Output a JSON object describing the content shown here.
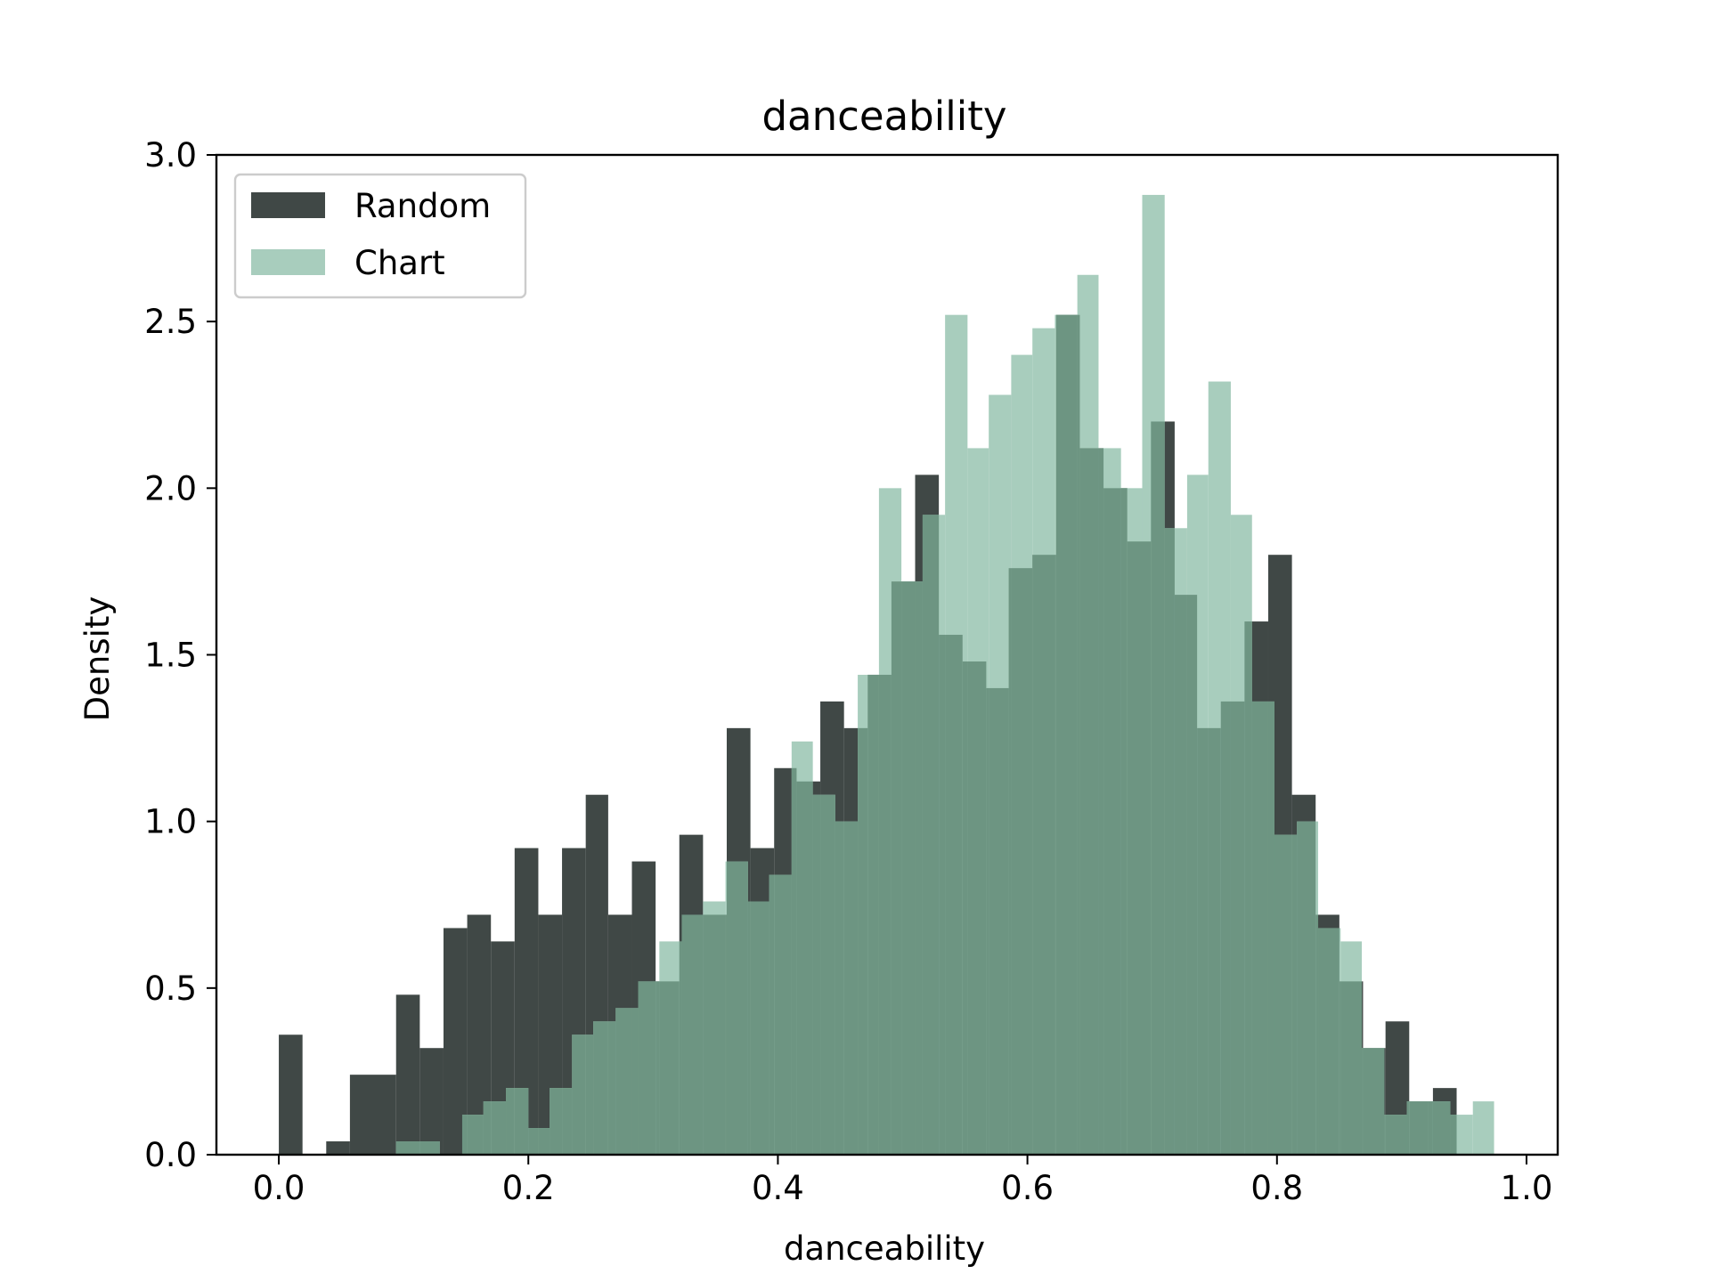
{
  "chart_data": {
    "type": "bar",
    "title": "danceability",
    "xlabel": "danceability",
    "ylabel": "Density",
    "xlim": [
      -0.05,
      1.025
    ],
    "ylim": [
      0,
      3.0
    ],
    "xticks": [
      "0.0",
      "0.2",
      "0.4",
      "0.6",
      "0.8",
      "1.0"
    ],
    "yticks": [
      "0.0",
      "0.5",
      "1.0",
      "1.5",
      "2.0",
      "2.5",
      "3.0"
    ],
    "legend_position": "upper-left",
    "colors": {
      "Random": "#404846",
      "Chart": "#a8cdbd",
      "overlap": "#6d9582"
    },
    "series": [
      {
        "name": "Random",
        "bins": [
          [
            0.0,
            0.019,
            0.36
          ],
          [
            0.038,
            0.057,
            0.04
          ],
          [
            0.057,
            0.094,
            0.24
          ],
          [
            0.094,
            0.113,
            0.48
          ],
          [
            0.113,
            0.132,
            0.32
          ],
          [
            0.132,
            0.151,
            0.68
          ],
          [
            0.151,
            0.17,
            0.72
          ],
          [
            0.17,
            0.189,
            0.64
          ],
          [
            0.189,
            0.208,
            0.92
          ],
          [
            0.208,
            0.227,
            0.72
          ],
          [
            0.227,
            0.246,
            0.92
          ],
          [
            0.246,
            0.264,
            1.08
          ],
          [
            0.264,
            0.283,
            0.72
          ],
          [
            0.283,
            0.302,
            0.88
          ],
          [
            0.302,
            0.321,
            0.52
          ],
          [
            0.321,
            0.34,
            0.96
          ],
          [
            0.34,
            0.359,
            0.72
          ],
          [
            0.359,
            0.378,
            1.28
          ],
          [
            0.378,
            0.397,
            0.92
          ],
          [
            0.397,
            0.415,
            1.16
          ],
          [
            0.415,
            0.434,
            1.12
          ],
          [
            0.434,
            0.453,
            1.36
          ],
          [
            0.453,
            0.472,
            1.28
          ],
          [
            0.472,
            0.491,
            1.44
          ],
          [
            0.491,
            0.51,
            1.72
          ],
          [
            0.51,
            0.529,
            2.04
          ],
          [
            0.529,
            0.548,
            1.56
          ],
          [
            0.548,
            0.567,
            1.48
          ],
          [
            0.567,
            0.585,
            1.4
          ],
          [
            0.585,
            0.604,
            1.76
          ],
          [
            0.604,
            0.623,
            1.8
          ],
          [
            0.623,
            0.642,
            2.52
          ],
          [
            0.642,
            0.661,
            2.12
          ],
          [
            0.661,
            0.68,
            2.0
          ],
          [
            0.68,
            0.699,
            1.84
          ],
          [
            0.699,
            0.718,
            2.2
          ],
          [
            0.718,
            0.736,
            1.68
          ],
          [
            0.736,
            0.755,
            1.28
          ],
          [
            0.755,
            0.774,
            1.36
          ],
          [
            0.774,
            0.793,
            1.6
          ],
          [
            0.793,
            0.812,
            1.8
          ],
          [
            0.812,
            0.831,
            1.08
          ],
          [
            0.831,
            0.85,
            0.72
          ],
          [
            0.85,
            0.869,
            0.52
          ],
          [
            0.869,
            0.887,
            0.32
          ],
          [
            0.887,
            0.906,
            0.4
          ],
          [
            0.906,
            0.925,
            0.16
          ],
          [
            0.925,
            0.944,
            0.2
          ]
        ]
      },
      {
        "name": "Chart",
        "bins": [
          [
            0.094,
            0.129,
            0.04
          ],
          [
            0.147,
            0.164,
            0.12
          ],
          [
            0.164,
            0.182,
            0.16
          ],
          [
            0.182,
            0.2,
            0.2
          ],
          [
            0.2,
            0.217,
            0.08
          ],
          [
            0.217,
            0.235,
            0.2
          ],
          [
            0.235,
            0.252,
            0.36
          ],
          [
            0.252,
            0.27,
            0.4
          ],
          [
            0.27,
            0.288,
            0.44
          ],
          [
            0.288,
            0.305,
            0.52
          ],
          [
            0.305,
            0.323,
            0.64
          ],
          [
            0.323,
            0.34,
            0.72
          ],
          [
            0.34,
            0.358,
            0.76
          ],
          [
            0.358,
            0.376,
            0.88
          ],
          [
            0.376,
            0.393,
            0.76
          ],
          [
            0.393,
            0.411,
            0.84
          ],
          [
            0.411,
            0.428,
            1.24
          ],
          [
            0.428,
            0.446,
            1.08
          ],
          [
            0.446,
            0.464,
            1.0
          ],
          [
            0.464,
            0.481,
            1.44
          ],
          [
            0.481,
            0.499,
            2.0
          ],
          [
            0.499,
            0.516,
            1.72
          ],
          [
            0.516,
            0.534,
            1.92
          ],
          [
            0.534,
            0.552,
            2.52
          ],
          [
            0.552,
            0.569,
            2.12
          ],
          [
            0.569,
            0.587,
            2.28
          ],
          [
            0.587,
            0.604,
            2.4
          ],
          [
            0.604,
            0.622,
            2.48
          ],
          [
            0.622,
            0.64,
            2.52
          ],
          [
            0.64,
            0.657,
            2.64
          ],
          [
            0.657,
            0.675,
            2.12
          ],
          [
            0.675,
            0.692,
            2.0
          ],
          [
            0.692,
            0.71,
            2.88
          ],
          [
            0.71,
            0.728,
            1.88
          ],
          [
            0.728,
            0.745,
            2.04
          ],
          [
            0.745,
            0.763,
            2.32
          ],
          [
            0.763,
            0.78,
            1.92
          ],
          [
            0.78,
            0.798,
            1.36
          ],
          [
            0.798,
            0.816,
            0.96
          ],
          [
            0.816,
            0.833,
            1.0
          ],
          [
            0.833,
            0.851,
            0.68
          ],
          [
            0.851,
            0.868,
            0.64
          ],
          [
            0.868,
            0.886,
            0.32
          ],
          [
            0.886,
            0.904,
            0.12
          ],
          [
            0.904,
            0.921,
            0.16
          ],
          [
            0.921,
            0.939,
            0.16
          ],
          [
            0.939,
            0.957,
            0.12
          ],
          [
            0.957,
            0.974,
            0.16
          ]
        ]
      }
    ]
  }
}
